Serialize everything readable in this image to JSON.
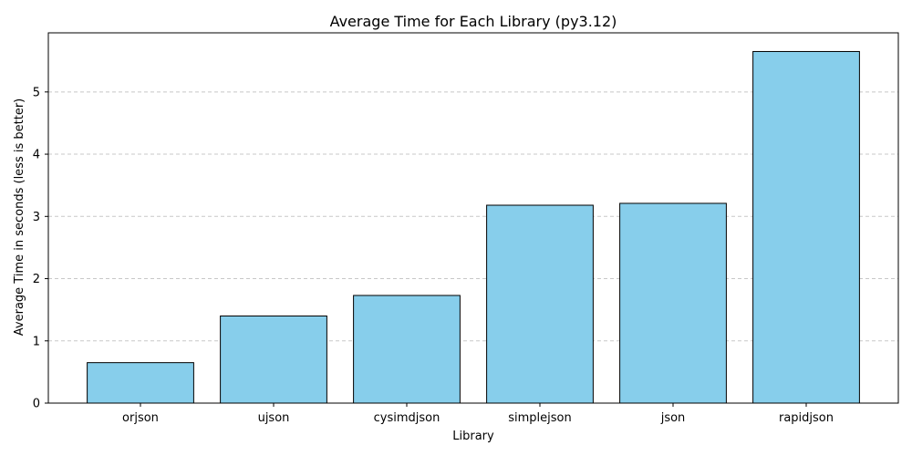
{
  "chart_data": {
    "type": "bar",
    "title": "Average Time for Each Library (py3.12)",
    "xlabel": "Library",
    "ylabel": "Average Time in seconds (less is better)",
    "categories": [
      "orjson",
      "ujson",
      "cysimdjson",
      "simplejson",
      "json",
      "rapidjson"
    ],
    "values": [
      0.65,
      1.4,
      1.73,
      3.18,
      3.21,
      5.65
    ],
    "ylim": [
      0,
      5.95
    ],
    "yticks": [
      "0",
      "1",
      "2",
      "3",
      "4",
      "5"
    ],
    "grid": "y-dashed",
    "bar_color": "#87ceeb",
    "bar_edge_color": "#000000",
    "grid_color": "#c8c8c8"
  }
}
